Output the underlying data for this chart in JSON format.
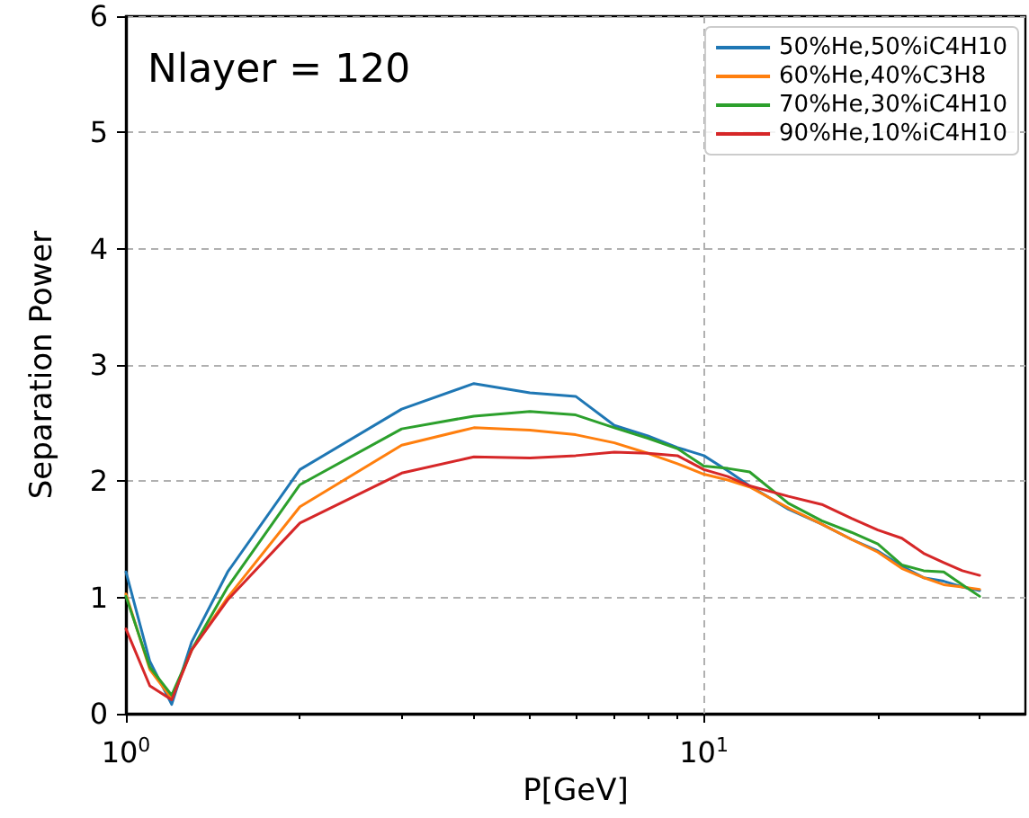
{
  "chart_data": {
    "type": "line",
    "annotations": [
      "Nlayer = 120"
    ],
    "xlabel": "P[GeV]",
    "ylabel": "Separation Power",
    "x": [
      1,
      1.1,
      1.2,
      1.3,
      1.5,
      2,
      3,
      4,
      5,
      6,
      7,
      8,
      9,
      10,
      11,
      12,
      14,
      16,
      18,
      20,
      22,
      24,
      26,
      28,
      30
    ],
    "series": [
      {
        "name": "50%He,50%iC4H10",
        "color": "#1f77b4",
        "values": [
          1.22,
          0.45,
          0.08,
          0.62,
          1.22,
          2.1,
          2.62,
          2.84,
          2.76,
          2.73,
          2.48,
          2.39,
          2.29,
          2.22,
          2.09,
          1.96,
          1.76,
          1.63,
          1.5,
          1.4,
          1.27,
          1.17,
          1.14,
          1.09,
          1.06
        ]
      },
      {
        "name": "60%He,40%C3H8",
        "color": "#ff7f0e",
        "values": [
          1.03,
          0.38,
          0.13,
          0.55,
          1.0,
          1.78,
          2.31,
          2.46,
          2.44,
          2.4,
          2.33,
          2.24,
          2.15,
          2.06,
          2.01,
          1.95,
          1.77,
          1.63,
          1.5,
          1.39,
          1.25,
          1.17,
          1.11,
          1.09,
          1.07
        ]
      },
      {
        "name": "70%He,30%iC4H10",
        "color": "#2ca02c",
        "values": [
          1.01,
          0.4,
          0.16,
          0.55,
          1.09,
          1.97,
          2.45,
          2.56,
          2.6,
          2.57,
          2.46,
          2.37,
          2.28,
          2.13,
          2.11,
          2.08,
          1.81,
          1.66,
          1.56,
          1.46,
          1.28,
          1.23,
          1.22,
          1.11,
          1.01
        ]
      },
      {
        "name": "90%He,10%iC4H10",
        "color": "#d62728",
        "values": [
          0.73,
          0.24,
          0.12,
          0.55,
          0.98,
          1.64,
          2.07,
          2.21,
          2.2,
          2.22,
          2.25,
          2.24,
          2.22,
          2.1,
          2.04,
          1.96,
          1.87,
          1.8,
          1.68,
          1.58,
          1.51,
          1.38,
          1.3,
          1.23,
          1.19
        ]
      }
    ],
    "log": "x",
    "xlim": [
      1,
      36
    ],
    "xticks": [
      {
        "value": 1,
        "label": "10$^{0}$"
      },
      {
        "value": 2,
        "label": null
      },
      {
        "value": 3,
        "label": null
      },
      {
        "value": 4,
        "label": null
      },
      {
        "value": 5,
        "label": null
      },
      {
        "value": 6,
        "label": null
      },
      {
        "value": 7,
        "label": null
      },
      {
        "value": 8,
        "label": null
      },
      {
        "value": 9,
        "label": null
      },
      {
        "value": 10,
        "label": "10$^{1}$"
      },
      {
        "value": 20,
        "label": null
      },
      {
        "value": 30,
        "label": null
      }
    ],
    "ylim": [
      0,
      6
    ],
    "yticks": [
      0,
      1,
      2,
      3,
      4,
      5,
      6
    ],
    "grid": true,
    "legend": "top right",
    "marker": "none",
    "line_style": "solid"
  }
}
